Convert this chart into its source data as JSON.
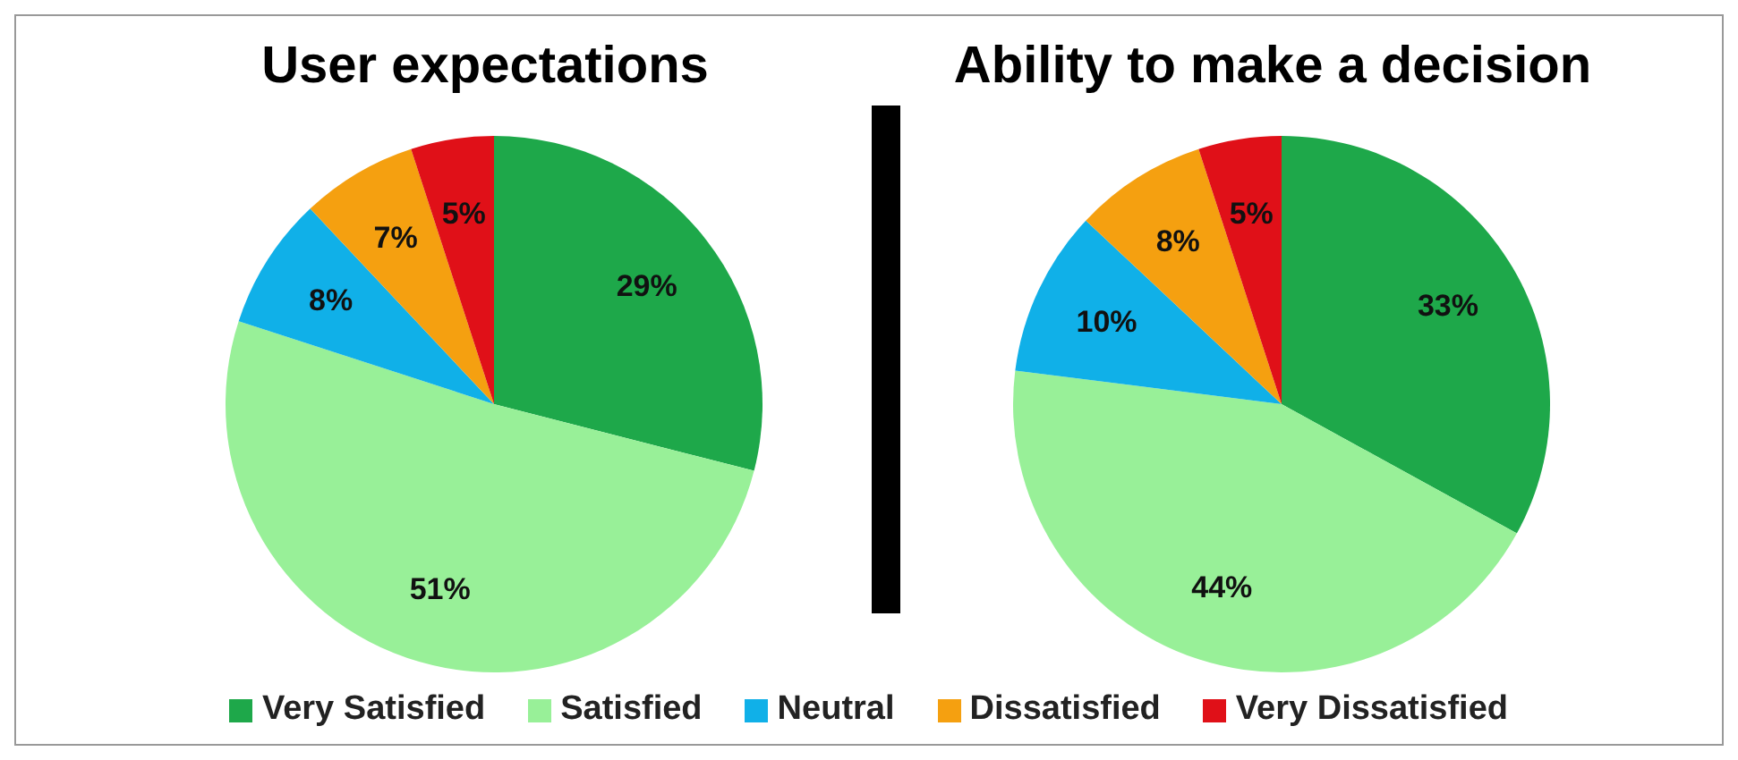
{
  "chart_data": [
    {
      "type": "pie",
      "title": "User expectations",
      "categories": [
        "Very Satisfied",
        "Satisfied",
        "Neutral",
        "Dissatisfied",
        "Very Dissatisfied"
      ],
      "values": [
        29,
        51,
        8,
        7,
        5
      ],
      "value_labels": [
        "29%",
        "51%",
        "8%",
        "7%",
        "5%"
      ],
      "colors": [
        "#1ea84a",
        "#98f098",
        "#10b0e8",
        "#f5a010",
        "#e01018"
      ],
      "legend": "bottom"
    },
    {
      "type": "pie",
      "title": "Ability to make a decision",
      "categories": [
        null,
        null,
        null,
        null,
        null
      ],
      "values": [
        33,
        44,
        10,
        8,
        5
      ],
      "value_labels": [
        "33%",
        "44%",
        "10%",
        "8%",
        "5%"
      ],
      "colors": [
        "#1ea84a",
        "#98f098",
        "#10b0e8",
        "#f5a010",
        "#e01018"
      ]
    }
  ]
}
